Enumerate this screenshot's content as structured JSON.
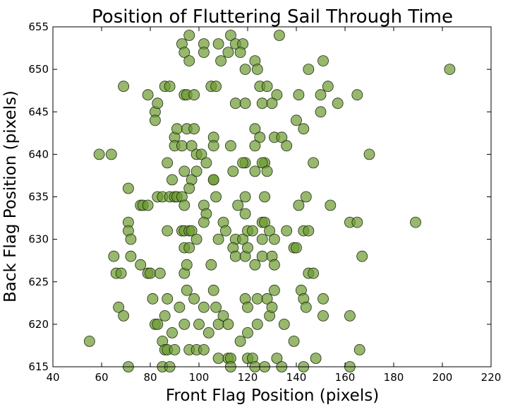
{
  "chart_data": {
    "type": "scatter",
    "title": "Position of Fluttering Sail Through Time",
    "xlabel": "Front Flag Position (pixels)",
    "ylabel": "Back Flag Position (pixels)",
    "xlim": [
      40,
      220
    ],
    "ylim": [
      615,
      655
    ],
    "xticks": [
      40,
      60,
      80,
      100,
      120,
      140,
      160,
      180,
      200,
      220
    ],
    "yticks": [
      615,
      620,
      625,
      630,
      635,
      640,
      645,
      650,
      655
    ],
    "grid": false,
    "marker_color": "#6b9a2f",
    "marker_edge_color": "#1f2a12",
    "points": [
      [
        93,
        653
      ],
      [
        96,
        654
      ],
      [
        102,
        653
      ],
      [
        108,
        653
      ],
      [
        113,
        654
      ],
      [
        115,
        653
      ],
      [
        118,
        653
      ],
      [
        133,
        654
      ],
      [
        94,
        652
      ],
      [
        96,
        651
      ],
      [
        102,
        652
      ],
      [
        109,
        651
      ],
      [
        112,
        652
      ],
      [
        117,
        652
      ],
      [
        119,
        650
      ],
      [
        123,
        651
      ],
      [
        124,
        650
      ],
      [
        145,
        650
      ],
      [
        151,
        651
      ],
      [
        203,
        650
      ],
      [
        69,
        648
      ],
      [
        79,
        647
      ],
      [
        86,
        648
      ],
      [
        88,
        648
      ],
      [
        94,
        647
      ],
      [
        95,
        647
      ],
      [
        98,
        647
      ],
      [
        105,
        648
      ],
      [
        107,
        648
      ],
      [
        125,
        648
      ],
      [
        128,
        648
      ],
      [
        132,
        647
      ],
      [
        141,
        647
      ],
      [
        150,
        647
      ],
      [
        153,
        648
      ],
      [
        165,
        647
      ],
      [
        82,
        645
      ],
      [
        83,
        646
      ],
      [
        115,
        646
      ],
      [
        119,
        646
      ],
      [
        126,
        646
      ],
      [
        130,
        646
      ],
      [
        150,
        645
      ],
      [
        157,
        646
      ],
      [
        82,
        644
      ],
      [
        90,
        642
      ],
      [
        91,
        643
      ],
      [
        95,
        643
      ],
      [
        98,
        643
      ],
      [
        106,
        642
      ],
      [
        106,
        641
      ],
      [
        113,
        641
      ],
      [
        123,
        643
      ],
      [
        125,
        642
      ],
      [
        131,
        642
      ],
      [
        134,
        642
      ],
      [
        140,
        644
      ],
      [
        143,
        643
      ],
      [
        59,
        640
      ],
      [
        64,
        640
      ],
      [
        90,
        641
      ],
      [
        93,
        641
      ],
      [
        97,
        641
      ],
      [
        99,
        640
      ],
      [
        101,
        640
      ],
      [
        103,
        639
      ],
      [
        119,
        639
      ],
      [
        123,
        641
      ],
      [
        127,
        639
      ],
      [
        136,
        641
      ],
      [
        147,
        639
      ],
      [
        170,
        640
      ],
      [
        87,
        639
      ],
      [
        89,
        637
      ],
      [
        94,
        638
      ],
      [
        97,
        637
      ],
      [
        99,
        638
      ],
      [
        106,
        637
      ],
      [
        114,
        638
      ],
      [
        118,
        639
      ],
      [
        123,
        638
      ],
      [
        126,
        639
      ],
      [
        128,
        638
      ],
      [
        71,
        636
      ],
      [
        83,
        635
      ],
      [
        85,
        635
      ],
      [
        88,
        635
      ],
      [
        90,
        635
      ],
      [
        91,
        635
      ],
      [
        93,
        635
      ],
      [
        96,
        636
      ],
      [
        106,
        637
      ],
      [
        107,
        635
      ],
      [
        119,
        635
      ],
      [
        127,
        635
      ],
      [
        144,
        635
      ],
      [
        76,
        634
      ],
      [
        77,
        634
      ],
      [
        79,
        634
      ],
      [
        94,
        634
      ],
      [
        102,
        634
      ],
      [
        103,
        633
      ],
      [
        116,
        634
      ],
      [
        119,
        633
      ],
      [
        126,
        632
      ],
      [
        141,
        634
      ],
      [
        154,
        634
      ],
      [
        71,
        632
      ],
      [
        71,
        631
      ],
      [
        72,
        630
      ],
      [
        87,
        631
      ],
      [
        93,
        631
      ],
      [
        94,
        631
      ],
      [
        96,
        631
      ],
      [
        97,
        631
      ],
      [
        99,
        630
      ],
      [
        102,
        632
      ],
      [
        110,
        632
      ],
      [
        111,
        631
      ],
      [
        115,
        630
      ],
      [
        118,
        630
      ],
      [
        120,
        631
      ],
      [
        122,
        631
      ],
      [
        126,
        630
      ],
      [
        127,
        632
      ],
      [
        129,
        631
      ],
      [
        131,
        630
      ],
      [
        136,
        631
      ],
      [
        143,
        631
      ],
      [
        145,
        631
      ],
      [
        162,
        632
      ],
      [
        165,
        632
      ],
      [
        189,
        632
      ],
      [
        65,
        628
      ],
      [
        72,
        628
      ],
      [
        94,
        629
      ],
      [
        96,
        629
      ],
      [
        108,
        630
      ],
      [
        114,
        629
      ],
      [
        115,
        628
      ],
      [
        119,
        628
      ],
      [
        120,
        629
      ],
      [
        126,
        628
      ],
      [
        130,
        628
      ],
      [
        139,
        629
      ],
      [
        140,
        629
      ],
      [
        167,
        628
      ],
      [
        66,
        626
      ],
      [
        68,
        626
      ],
      [
        76,
        627
      ],
      [
        79,
        626
      ],
      [
        80,
        626
      ],
      [
        84,
        626
      ],
      [
        94,
        626
      ],
      [
        95,
        627
      ],
      [
        105,
        627
      ],
      [
        123,
        627
      ],
      [
        131,
        627
      ],
      [
        145,
        626
      ],
      [
        147,
        626
      ],
      [
        81,
        623
      ],
      [
        87,
        623
      ],
      [
        92,
        622
      ],
      [
        95,
        624
      ],
      [
        98,
        623
      ],
      [
        102,
        622
      ],
      [
        106,
        624
      ],
      [
        107,
        622
      ],
      [
        119,
        623
      ],
      [
        120,
        622
      ],
      [
        124,
        623
      ],
      [
        128,
        623
      ],
      [
        131,
        624
      ],
      [
        142,
        624
      ],
      [
        143,
        623
      ],
      [
        144,
        622
      ],
      [
        151,
        623
      ],
      [
        67,
        622
      ],
      [
        69,
        621
      ],
      [
        82,
        620
      ],
      [
        83,
        620
      ],
      [
        86,
        621
      ],
      [
        89,
        619
      ],
      [
        94,
        620
      ],
      [
        100,
        620
      ],
      [
        104,
        619
      ],
      [
        108,
        620
      ],
      [
        110,
        621
      ],
      [
        112,
        620
      ],
      [
        120,
        619
      ],
      [
        124,
        620
      ],
      [
        129,
        621
      ],
      [
        130,
        622
      ],
      [
        135,
        620
      ],
      [
        151,
        621
      ],
      [
        162,
        621
      ],
      [
        55,
        618
      ],
      [
        85,
        618
      ],
      [
        86,
        617
      ],
      [
        87,
        617
      ],
      [
        90,
        617
      ],
      [
        96,
        617
      ],
      [
        99,
        617
      ],
      [
        102,
        617
      ],
      [
        108,
        616
      ],
      [
        112,
        616
      ],
      [
        113,
        616
      ],
      [
        117,
        618
      ],
      [
        120,
        616
      ],
      [
        122,
        616
      ],
      [
        132,
        616
      ],
      [
        134,
        615
      ],
      [
        139,
        618
      ],
      [
        143,
        615
      ],
      [
        148,
        616
      ],
      [
        166,
        617
      ],
      [
        162,
        615
      ],
      [
        71,
        615
      ],
      [
        85,
        615
      ],
      [
        88,
        615
      ],
      [
        113,
        615
      ],
      [
        123,
        615
      ],
      [
        127,
        615
      ]
    ]
  }
}
